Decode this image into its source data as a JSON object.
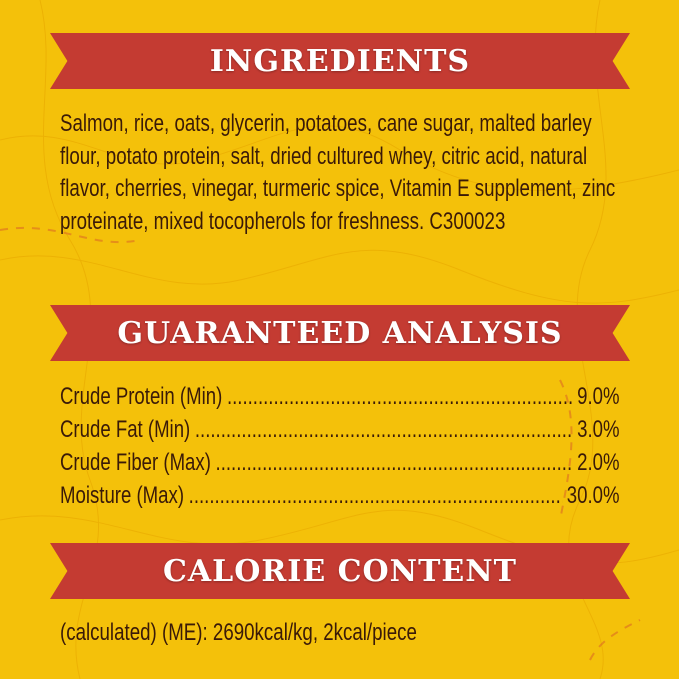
{
  "colors": {
    "background": "#f4c10a",
    "banner": "#c43b32",
    "text": "#3a1a08"
  },
  "ingredients": {
    "title": "INGREDIENTS",
    "text": "Salmon, rice, oats, glycerin, potatoes, cane sugar, malted barley flour, potato protein, salt, dried cultured whey, citric acid, natural flavor, cherries, vinegar, turmeric spice, Vitamin E supplement, zinc proteinate, mixed tocopherols for freshness. C300023"
  },
  "analysis": {
    "title": "GUARANTEED ANALYSIS",
    "rows": [
      {
        "label": "Crude Protein (Min)",
        "value": "9.0%"
      },
      {
        "label": "Crude Fat (Min)",
        "value": "3.0%"
      },
      {
        "label": "Crude Fiber (Max)",
        "value": "2.0%"
      },
      {
        "label": "Moisture (Max)",
        "value": "30.0%"
      }
    ]
  },
  "calorie": {
    "title": "CALORIE CONTENT",
    "text": "(calculated) (ME): 2690kcal/kg, 2kcal/piece"
  }
}
